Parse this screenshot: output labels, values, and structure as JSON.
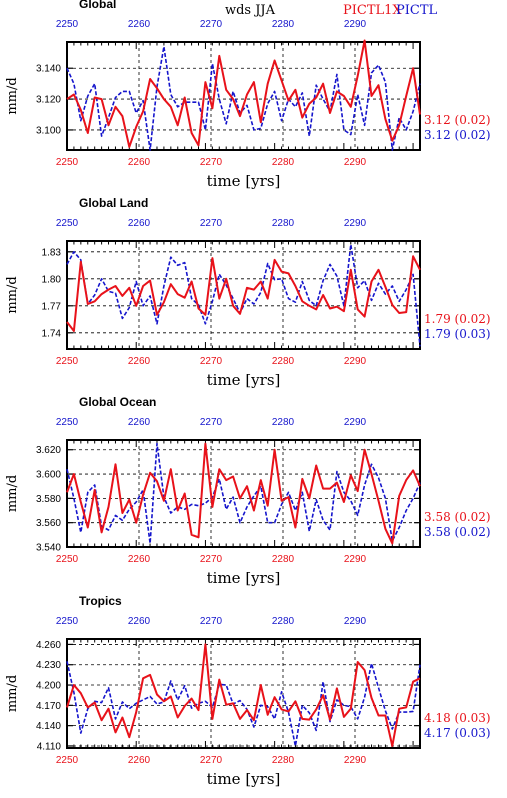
{
  "header": {
    "center_title": "wds  JJA",
    "legend_red": "PICTL1X",
    "legend_blue": "PICTL"
  },
  "colors": {
    "red": "#e8121a",
    "blue": "#1515cc",
    "black": "#000000"
  },
  "chart_data": [
    {
      "type": "line",
      "title": "Global",
      "xlabel": "time [yrs]",
      "ylabel": "mm/d",
      "x_ticks": [
        "2250",
        "2260",
        "2270",
        "2280",
        "2290"
      ],
      "y_ticks": [
        "3.100",
        "3.120",
        "3.140"
      ],
      "ylim": [
        3.087,
        3.157
      ],
      "grid": true,
      "series": [
        {
          "name": "PICTL1X",
          "summary": "3.12 (0.02)",
          "values": [
            3.12,
            3.123,
            3.113,
            3.098,
            3.121,
            3.12,
            3.103,
            3.115,
            3.109,
            3.089,
            3.102,
            3.112,
            3.133,
            3.127,
            3.12,
            3.115,
            3.103,
            3.121,
            3.098,
            3.09,
            3.131,
            3.114,
            3.148,
            3.126,
            3.12,
            3.109,
            3.123,
            3.131,
            3.105,
            3.13,
            3.145,
            3.132,
            3.119,
            3.126,
            3.108,
            3.117,
            3.121,
            3.13,
            3.111,
            3.125,
            3.122,
            3.115,
            3.135,
            3.158,
            3.122,
            3.129,
            3.107,
            3.093,
            3.103,
            3.122,
            3.14,
            3.11
          ]
        },
        {
          "name": "PICTL",
          "summary": "3.12 (0.02)",
          "values": [
            3.14,
            3.13,
            3.106,
            3.122,
            3.13,
            3.096,
            3.108,
            3.121,
            3.125,
            3.125,
            3.111,
            3.119,
            3.087,
            3.128,
            3.154,
            3.123,
            3.115,
            3.118,
            3.118,
            3.118,
            3.1,
            3.143,
            3.12,
            3.104,
            3.125,
            3.111,
            3.116,
            3.1,
            3.101,
            3.117,
            3.125,
            3.106,
            3.12,
            3.115,
            3.124,
            3.096,
            3.129,
            3.12,
            3.112,
            3.136,
            3.1,
            3.097,
            3.123,
            3.103,
            3.137,
            3.142,
            3.131,
            3.087,
            3.108,
            3.1,
            3.112,
            3.13
          ]
        }
      ]
    },
    {
      "type": "line",
      "title": "Global Land",
      "xlabel": "time [yrs]",
      "ylabel": "mm/d",
      "x_ticks": [
        "2250",
        "2260",
        "2270",
        "2280",
        "2290"
      ],
      "y_ticks": [
        "1.74",
        "1.77",
        "1.80",
        "1.83"
      ],
      "ylim": [
        1.722,
        1.842
      ],
      "grid": true,
      "series": [
        {
          "name": "PICTL1X",
          "summary": "1.79 (0.02)",
          "values": [
            1.752,
            1.742,
            1.819,
            1.772,
            1.775,
            1.783,
            1.788,
            1.792,
            1.781,
            1.79,
            1.77,
            1.792,
            1.798,
            1.76,
            1.774,
            1.794,
            1.783,
            1.779,
            1.797,
            1.767,
            1.76,
            1.823,
            1.778,
            1.8,
            1.77,
            1.761,
            1.79,
            1.788,
            1.797,
            1.778,
            1.821,
            1.808,
            1.806,
            1.792,
            1.775,
            1.77,
            1.766,
            1.782,
            1.767,
            1.769,
            1.764,
            1.81,
            1.766,
            1.758,
            1.797,
            1.81,
            1.791,
            1.771,
            1.762,
            1.763,
            1.825,
            1.81
          ]
        },
        {
          "name": "PICTL",
          "summary": "1.79 (0.03)",
          "values": [
            1.816,
            1.83,
            1.821,
            1.772,
            1.782,
            1.8,
            1.786,
            1.784,
            1.756,
            1.768,
            1.797,
            1.77,
            1.781,
            1.75,
            1.792,
            1.824,
            1.815,
            1.818,
            1.778,
            1.771,
            1.75,
            1.775,
            1.805,
            1.793,
            1.778,
            1.762,
            1.778,
            1.772,
            1.785,
            1.817,
            1.799,
            1.8,
            1.778,
            1.774,
            1.797,
            1.776,
            1.77,
            1.798,
            1.816,
            1.803,
            1.77,
            1.838,
            1.79,
            1.798,
            1.776,
            1.795,
            1.783,
            1.792,
            1.775,
            1.788,
            1.805,
            1.725
          ]
        }
      ]
    },
    {
      "type": "line",
      "title": "Global Ocean",
      "xlabel": "time [yrs]",
      "ylabel": "mm/d",
      "x_ticks": [
        "2250",
        "2260",
        "2270",
        "2280",
        "2290"
      ],
      "y_ticks": [
        "3.540",
        "3.560",
        "3.580",
        "3.600",
        "3.620"
      ],
      "ylim": [
        3.54,
        3.628
      ],
      "grid": true,
      "series": [
        {
          "name": "PICTL1X",
          "summary": "3.58 (0.02)",
          "values": [
            3.585,
            3.6,
            3.577,
            3.556,
            3.587,
            3.552,
            3.573,
            3.608,
            3.568,
            3.579,
            3.56,
            3.583,
            3.601,
            3.594,
            3.578,
            3.604,
            3.57,
            3.584,
            3.55,
            3.548,
            3.625,
            3.573,
            3.604,
            3.595,
            3.598,
            3.58,
            3.59,
            3.57,
            3.595,
            3.574,
            3.62,
            3.578,
            3.581,
            3.556,
            3.596,
            3.58,
            3.607,
            3.588,
            3.588,
            3.593,
            3.577,
            3.599,
            3.586,
            3.62,
            3.6,
            3.578,
            3.555,
            3.543,
            3.582,
            3.595,
            3.603,
            3.59
          ]
        },
        {
          "name": "PICTL",
          "summary": "3.58 (0.02)",
          "values": [
            3.604,
            3.58,
            3.552,
            3.585,
            3.591,
            3.557,
            3.554,
            3.566,
            3.562,
            3.571,
            3.577,
            3.587,
            3.543,
            3.625,
            3.581,
            3.568,
            3.573,
            3.571,
            3.575,
            3.574,
            3.576,
            3.581,
            3.596,
            3.571,
            3.581,
            3.56,
            3.573,
            3.582,
            3.59,
            3.56,
            3.56,
            3.575,
            3.585,
            3.57,
            3.585,
            3.553,
            3.579,
            3.562,
            3.554,
            3.602,
            3.585,
            3.578,
            3.566,
            3.591,
            3.608,
            3.597,
            3.58,
            3.545,
            3.556,
            3.57,
            3.58,
            3.593
          ]
        }
      ]
    },
    {
      "type": "line",
      "title": "Tropics",
      "xlabel": "time [yrs]",
      "ylabel": "mm/d",
      "x_ticks": [
        "2250",
        "2260",
        "2270",
        "2280",
        "2290"
      ],
      "y_ticks": [
        "4.110",
        "4.140",
        "4.170",
        "4.200",
        "4.230",
        "4.260"
      ],
      "ylim": [
        4.107,
        4.268
      ],
      "grid": true,
      "series": [
        {
          "name": "PICTL1X",
          "summary": "4.18 (0.03)",
          "values": [
            4.167,
            4.2,
            4.188,
            4.167,
            4.174,
            4.148,
            4.165,
            4.13,
            4.152,
            4.123,
            4.16,
            4.21,
            4.215,
            4.186,
            4.176,
            4.183,
            4.152,
            4.169,
            4.18,
            4.163,
            4.26,
            4.15,
            4.208,
            4.171,
            4.173,
            4.15,
            4.163,
            4.148,
            4.2,
            4.156,
            4.182,
            4.164,
            4.161,
            4.176,
            4.15,
            4.149,
            4.164,
            4.185,
            4.149,
            4.195,
            4.153,
            4.165,
            4.234,
            4.222,
            4.181,
            4.155,
            4.155,
            4.11,
            4.165,
            4.167,
            4.205,
            4.21
          ]
        },
        {
          "name": "PICTL",
          "summary": "4.17 (0.03)",
          "values": [
            4.235,
            4.189,
            4.129,
            4.165,
            4.176,
            4.174,
            4.196,
            4.15,
            4.175,
            4.165,
            4.173,
            4.178,
            4.183,
            4.172,
            4.175,
            4.206,
            4.178,
            4.199,
            4.166,
            4.173,
            4.176,
            4.167,
            4.201,
            4.2,
            4.172,
            4.177,
            4.164,
            4.138,
            4.17,
            4.168,
            4.15,
            4.19,
            4.16,
            4.11,
            4.17,
            4.159,
            4.133,
            4.205,
            4.146,
            4.178,
            4.17,
            4.168,
            4.15,
            4.182,
            4.232,
            4.196,
            4.162,
            4.135,
            4.16,
            4.16,
            4.161,
            4.23
          ]
        }
      ]
    }
  ]
}
